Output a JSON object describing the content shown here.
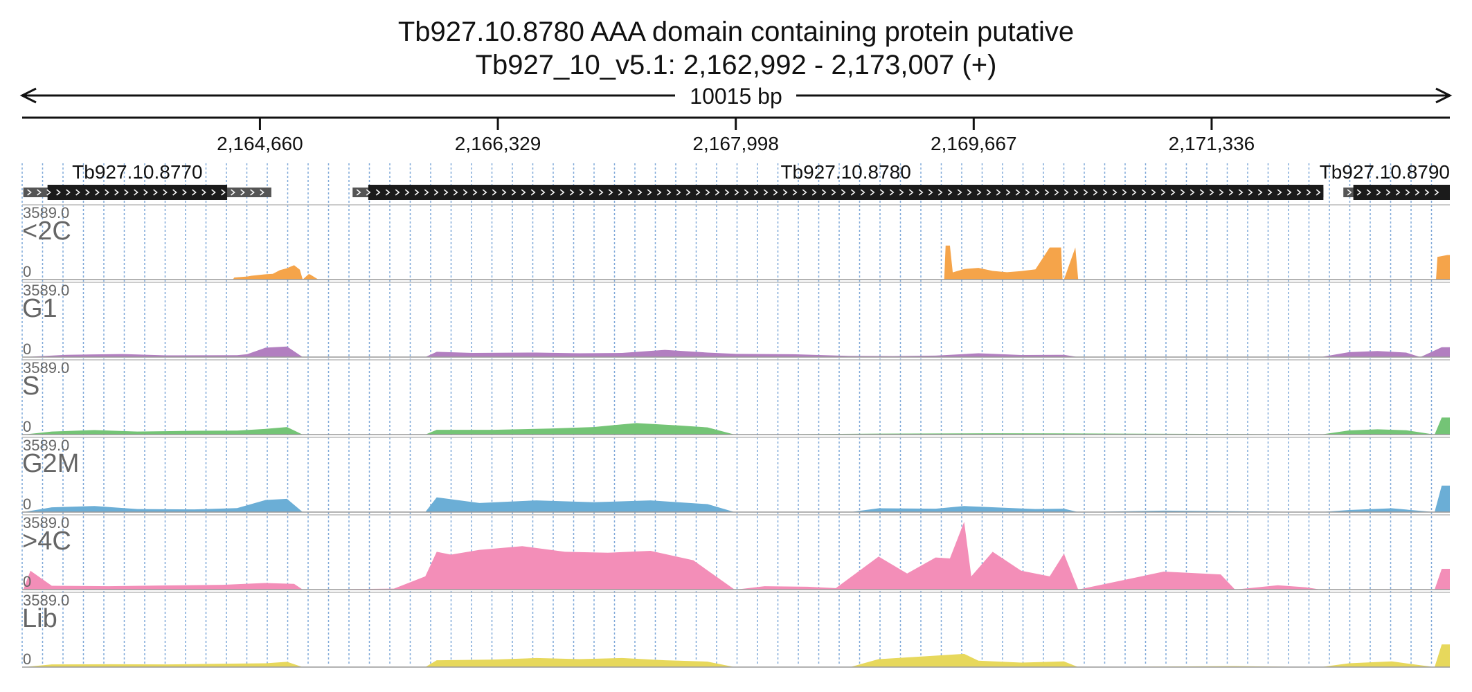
{
  "title": "Tb927.10.8780  AAA domain containing protein  putative",
  "subtitle": "Tb927_10_v5.1: 2,162,992 - 2,173,007 (+)",
  "span_label": "10015 bp",
  "colors": {
    "axis": "#111111",
    "gene": "#1b1b1b",
    "utr": "#555555",
    "grid": "#7fa8d8",
    "track_label": "#666666"
  },
  "chart_data": {
    "type": "area",
    "title": "Tb927.10.8780  AAA domain containing protein  putative",
    "subtitle": "Tb927_10_v5.1: 2,162,992 - 2,173,007 (+)",
    "xlim": [
      2162992,
      2173007
    ],
    "x_ticks": [
      2164660,
      2166329,
      2167998,
      2169667,
      2171336
    ],
    "x_tick_labels": [
      "2,164,660",
      "2,166,329",
      "2,167,998",
      "2,169,667",
      "2,171,336"
    ],
    "ylim": [
      0,
      3589.0
    ],
    "y_max_label": "3589.0",
    "y_min_label": "0",
    "genes": [
      {
        "name": "Tb927.10.8770",
        "start": 2163000,
        "end": 2164740,
        "cds_start": 2163170,
        "cds_end": 2164430
      },
      {
        "name": "Tb927.10.8780",
        "start": 2165310,
        "end": 2172120,
        "cds_start": 2165420,
        "cds_end": 2172120
      },
      {
        "name": "Tb927.10.8790",
        "start": 2172260,
        "end": 2173007,
        "cds_start": 2172330,
        "cds_end": 2173007
      }
    ],
    "series": [
      {
        "name": "<2C",
        "color": "#f5a44a",
        "x": [
          2163000,
          2164470,
          2164480,
          2164570,
          2164600,
          2164700,
          2164750,
          2164800,
          2164850,
          2164880,
          2164900,
          2164940,
          2164960,
          2165000,
          2165010,
          2165070,
          2165080,
          2166400,
          2166500,
          2169460,
          2169470,
          2169500,
          2169520,
          2169600,
          2169700,
          2169800,
          2169900,
          2170000,
          2170100,
          2170200,
          2170280,
          2170290,
          2170300,
          2170380,
          2170400,
          2172910,
          2172920,
          2172990,
          2173007
        ],
        "values": [
          0,
          0,
          110,
          160,
          200,
          280,
          300,
          500,
          600,
          700,
          760,
          520,
          0,
          280,
          280,
          0,
          0,
          0,
          0,
          0,
          1800,
          1800,
          380,
          560,
          620,
          460,
          390,
          450,
          540,
          1700,
          1700,
          0,
          0,
          1700,
          0,
          0,
          1200,
          1300,
          1300
        ]
      },
      {
        "name": "G1",
        "color": "#b27fc0",
        "x": [
          2163000,
          2163300,
          2163700,
          2164000,
          2164500,
          2164570,
          2164700,
          2164850,
          2164960,
          2165000,
          2165820,
          2165900,
          2166150,
          2166600,
          2166900,
          2167200,
          2167500,
          2167800,
          2168000,
          2168400,
          2168800,
          2169100,
          2169400,
          2169700,
          2170000,
          2170300,
          2170400,
          2172100,
          2172300,
          2172500,
          2172700,
          2172800,
          2172950,
          2173007
        ],
        "values": [
          0,
          120,
          160,
          90,
          100,
          150,
          500,
          560,
          0,
          0,
          0,
          280,
          220,
          240,
          200,
          220,
          380,
          240,
          170,
          150,
          60,
          50,
          80,
          200,
          110,
          120,
          0,
          0,
          260,
          320,
          240,
          0,
          520,
          520
        ]
      },
      {
        "name": "S",
        "color": "#74c476",
        "x": [
          2163000,
          2163200,
          2163500,
          2163800,
          2164200,
          2164500,
          2164700,
          2164850,
          2164960,
          2165000,
          2165820,
          2165900,
          2166300,
          2166700,
          2167000,
          2167300,
          2167600,
          2167800,
          2167990,
          2168000,
          2169000,
          2169800,
          2170400,
          2171500,
          2172100,
          2172300,
          2172500,
          2172700,
          2172900,
          2172950,
          2173007
        ],
        "values": [
          0,
          160,
          240,
          160,
          200,
          210,
          300,
          400,
          0,
          0,
          0,
          250,
          250,
          320,
          400,
          610,
          480,
          380,
          0,
          0,
          50,
          70,
          60,
          30,
          0,
          220,
          280,
          230,
          0,
          900,
          900
        ]
      },
      {
        "name": "G2M",
        "color": "#6baed6",
        "x": [
          2163000,
          2163200,
          2163500,
          2163800,
          2164200,
          2164500,
          2164700,
          2164850,
          2164960,
          2165000,
          2165820,
          2165900,
          2166200,
          2166600,
          2167000,
          2167400,
          2167800,
          2167990,
          2168000,
          2168800,
          2169000,
          2169400,
          2169600,
          2170100,
          2170300,
          2170400,
          2171000,
          2172100,
          2172300,
          2172600,
          2172900,
          2172950,
          2173007
        ],
        "values": [
          0,
          250,
          320,
          160,
          140,
          210,
          640,
          700,
          0,
          0,
          0,
          780,
          480,
          620,
          520,
          620,
          420,
          0,
          0,
          0,
          200,
          180,
          320,
          160,
          180,
          0,
          80,
          0,
          110,
          200,
          0,
          1400,
          1400
        ]
      },
      {
        "name": ">4C",
        "color": "#f38eb8",
        "x": [
          2163000,
          2163050,
          2163200,
          2163600,
          2164000,
          2164400,
          2164700,
          2164900,
          2164960,
          2165000,
          2165600,
          2165820,
          2165900,
          2166000,
          2166200,
          2166500,
          2166800,
          2167100,
          2167400,
          2167700,
          2167990,
          2168000,
          2168200,
          2168500,
          2168700,
          2169000,
          2169200,
          2169400,
          2169500,
          2169600,
          2169650,
          2169800,
          2170000,
          2170200,
          2170300,
          2170400,
          2171000,
          2171400,
          2171500,
          2171800,
          2172000,
          2172100,
          2172900,
          2172950,
          2173007
        ],
        "values": [
          0,
          1000,
          200,
          180,
          220,
          250,
          350,
          300,
          0,
          0,
          50,
          700,
          2000,
          1850,
          2100,
          2300,
          2000,
          1950,
          2050,
          1550,
          0,
          0,
          180,
          150,
          80,
          1750,
          850,
          1700,
          1650,
          3589,
          700,
          2000,
          1000,
          700,
          1900,
          0,
          950,
          800,
          0,
          230,
          120,
          0,
          0,
          1100,
          1100
        ]
      },
      {
        "name": "Lib",
        "color": "#e7d85c",
        "x": [
          2163000,
          2163200,
          2163600,
          2164000,
          2164400,
          2164700,
          2164850,
          2164960,
          2165000,
          2165820,
          2165900,
          2166300,
          2166600,
          2166900,
          2167200,
          2167500,
          2167800,
          2167990,
          2168000,
          2168800,
          2169000,
          2169300,
          2169600,
          2169700,
          2170000,
          2170300,
          2170400,
          2171500,
          2172100,
          2172300,
          2172600,
          2172900,
          2172950,
          2173007
        ],
        "values": [
          0,
          140,
          150,
          140,
          180,
          200,
          280,
          0,
          0,
          0,
          360,
          400,
          480,
          420,
          480,
          360,
          290,
          0,
          0,
          0,
          420,
          560,
          700,
          340,
          240,
          300,
          0,
          50,
          0,
          200,
          300,
          0,
          1200,
          1200
        ]
      }
    ]
  }
}
